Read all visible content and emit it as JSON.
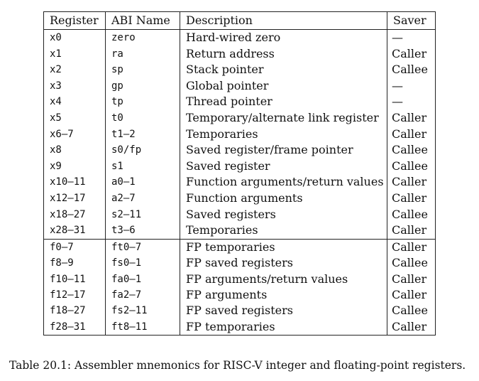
{
  "table": {
    "headers": [
      "Register",
      "ABI Name",
      "Description",
      "Saver"
    ],
    "integer_rows": [
      {
        "register": "x0",
        "abi": "zero",
        "description": "Hard-wired zero",
        "saver": "—"
      },
      {
        "register": "x1",
        "abi": "ra",
        "description": "Return address",
        "saver": "Caller"
      },
      {
        "register": "x2",
        "abi": "sp",
        "description": "Stack pointer",
        "saver": "Callee"
      },
      {
        "register": "x3",
        "abi": "gp",
        "description": "Global pointer",
        "saver": "—"
      },
      {
        "register": "x4",
        "abi": "tp",
        "description": "Thread pointer",
        "saver": "—"
      },
      {
        "register": "x5",
        "abi": "t0",
        "description": "Temporary/alternate link register",
        "saver": "Caller"
      },
      {
        "register": "x6–7",
        "abi": "t1–2",
        "description": "Temporaries",
        "saver": "Caller"
      },
      {
        "register": "x8",
        "abi": "s0/fp",
        "description": "Saved register/frame pointer",
        "saver": "Callee"
      },
      {
        "register": "x9",
        "abi": "s1",
        "description": "Saved register",
        "saver": "Callee"
      },
      {
        "register": "x10–11",
        "abi": "a0–1",
        "description": "Function arguments/return values",
        "saver": "Caller"
      },
      {
        "register": "x12–17",
        "abi": "a2–7",
        "description": "Function arguments",
        "saver": "Caller"
      },
      {
        "register": "x18–27",
        "abi": "s2–11",
        "description": "Saved registers",
        "saver": "Callee"
      },
      {
        "register": "x28–31",
        "abi": "t3–6",
        "description": "Temporaries",
        "saver": "Caller"
      }
    ],
    "fp_rows": [
      {
        "register": "f0–7",
        "abi": "ft0–7",
        "description": "FP temporaries",
        "saver": "Caller"
      },
      {
        "register": "f8–9",
        "abi": "fs0–1",
        "description": "FP saved registers",
        "saver": "Callee"
      },
      {
        "register": "f10–11",
        "abi": "fa0–1",
        "description": "FP arguments/return values",
        "saver": "Caller"
      },
      {
        "register": "f12–17",
        "abi": "fa2–7",
        "description": "FP arguments",
        "saver": "Caller"
      },
      {
        "register": "f18–27",
        "abi": "fs2–11",
        "description": "FP saved registers",
        "saver": "Callee"
      },
      {
        "register": "f28–31",
        "abi": "ft8–11",
        "description": "FP temporaries",
        "saver": "Caller"
      }
    ]
  },
  "caption": "Table 20.1: Assembler mnemonics for RISC-V integer and floating-point registers."
}
